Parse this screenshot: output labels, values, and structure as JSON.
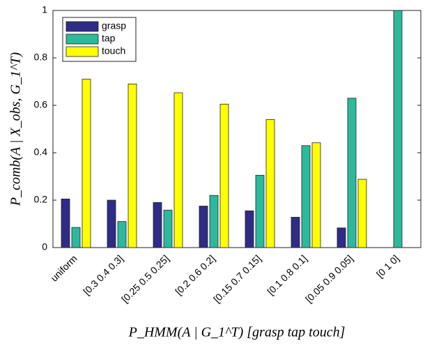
{
  "chart_data": {
    "type": "bar",
    "categories": [
      "uniform",
      "[0.3 0.4 0.3]",
      "[0.25 0.5 0.25]",
      "[0.2 0.6 0.2]",
      "[0.15 0.7 0.15]",
      "[0.1 0.8 0.1]",
      "[0.05 0.9 0.05]",
      "[0 1 0]"
    ],
    "series": [
      {
        "name": "grasp",
        "color": "#2e2c86",
        "values": [
          0.205,
          0.2,
          0.19,
          0.175,
          0.155,
          0.128,
          0.083,
          0
        ]
      },
      {
        "name": "tap",
        "color": "#2cb99c",
        "values": [
          0.085,
          0.11,
          0.158,
          0.22,
          0.305,
          0.43,
          0.63,
          1.0
        ]
      },
      {
        "name": "touch",
        "color": "#ffff00",
        "values": [
          0.71,
          0.69,
          0.653,
          0.605,
          0.54,
          0.442,
          0.288,
          0
        ]
      }
    ],
    "ylim": [
      0,
      1
    ],
    "yticks": [
      0,
      0.2,
      0.4,
      0.6,
      0.8,
      1
    ],
    "y_label": "P_comb(A | X_obs, G_1^T)",
    "x_label": "P_HMM(A | G_1^T) [grasp tap touch]",
    "legend": "top-left"
  }
}
